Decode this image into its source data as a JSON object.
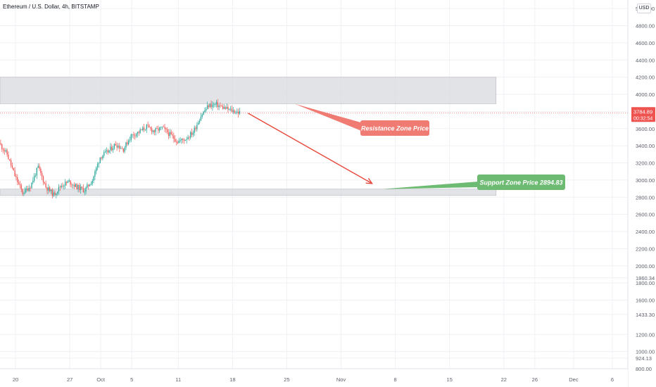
{
  "header": {
    "title": "Ethereum / U.S. Dollar, 4h, BITSTAMP",
    "currency": "USD"
  },
  "colors": {
    "up": "#26a69a",
    "down": "#ef5350",
    "zone_fill": "#d8d9de",
    "resistance_callout": "#f07b73",
    "support_callout": "#6dbb72",
    "arrow": "#e8483c",
    "price_badge": "#ef5350"
  },
  "chart_data": {
    "type": "candlestick",
    "ylim": [
      800,
      5100
    ],
    "yticks": [
      "5000.00",
      "4800.00",
      "4600.00",
      "4400.00",
      "4200.00",
      "4000.00",
      "3800.00",
      "3600.00",
      "3400.00",
      "3200.00",
      "3000.00",
      "2800.00",
      "2600.00",
      "2400.00",
      "2200.00",
      "2000.00",
      "1860.34",
      "1800.00",
      "1600.00",
      "1433.30",
      "1200.00",
      "1000.00",
      "924.13",
      "800.00"
    ],
    "xlim": [
      "2021-09-18",
      "2021-12-08"
    ],
    "xticks": [
      {
        "label": "20",
        "date": "2021-09-20"
      },
      {
        "label": "27",
        "date": "2021-09-27"
      },
      {
        "label": "Oct",
        "date": "2021-10-01"
      },
      {
        "label": "5",
        "date": "2021-10-05"
      },
      {
        "label": "11",
        "date": "2021-10-11"
      },
      {
        "label": "18",
        "date": "2021-10-18"
      },
      {
        "label": "25",
        "date": "2021-10-25"
      },
      {
        "label": "Nov",
        "date": "2021-11-01"
      },
      {
        "label": "8",
        "date": "2021-11-08"
      },
      {
        "label": "15",
        "date": "2021-11-15"
      },
      {
        "label": "22",
        "date": "2021-11-22"
      },
      {
        "label": "26",
        "date": "2021-11-26"
      },
      {
        "label": "Dec",
        "date": "2021-12-01"
      },
      {
        "label": "6",
        "date": "2021-12-06"
      }
    ],
    "price_path": [
      [
        "2021-09-18",
        3430
      ],
      [
        "2021-09-19",
        3300
      ],
      [
        "2021-09-20",
        3050
      ],
      [
        "2021-09-21",
        2850
      ],
      [
        "2021-09-22",
        2930
      ],
      [
        "2021-09-23",
        3150
      ],
      [
        "2021-09-24",
        2920
      ],
      [
        "2021-09-25",
        2830
      ],
      [
        "2021-09-26",
        2940
      ],
      [
        "2021-09-27",
        2980
      ],
      [
        "2021-09-28",
        2920
      ],
      [
        "2021-09-29",
        2880
      ],
      [
        "2021-09-30",
        3000
      ],
      [
        "2021-10-01",
        3270
      ],
      [
        "2021-10-02",
        3330
      ],
      [
        "2021-10-03",
        3420
      ],
      [
        "2021-10-04",
        3360
      ],
      [
        "2021-10-05",
        3520
      ],
      [
        "2021-10-06",
        3560
      ],
      [
        "2021-10-07",
        3620
      ],
      [
        "2021-10-08",
        3570
      ],
      [
        "2021-10-09",
        3610
      ],
      [
        "2021-10-10",
        3530
      ],
      [
        "2021-10-11",
        3450
      ],
      [
        "2021-10-12",
        3480
      ],
      [
        "2021-10-13",
        3560
      ],
      [
        "2021-10-14",
        3750
      ],
      [
        "2021-10-15",
        3870
      ],
      [
        "2021-10-16",
        3880
      ],
      [
        "2021-10-17",
        3840
      ],
      [
        "2021-10-18",
        3810
      ],
      [
        "2021-10-19",
        3785
      ]
    ],
    "last_price": "3784.89",
    "countdown": "00:32:54",
    "last_price_value": 3784.89,
    "zones": [
      {
        "name": "resistance",
        "from": "2021-09-18",
        "to": "2021-11-21",
        "low": 3890,
        "high": 4200
      },
      {
        "name": "support",
        "from": "2021-09-18",
        "to": "2021-11-21",
        "low": 2820,
        "high": 2894.83
      }
    ],
    "annotations": {
      "resistance_label": "Resistance Zone Price",
      "support_label": "Support Zone Price 2894.83"
    },
    "projection": {
      "from": [
        "2021-10-20",
        3780
      ],
      "to": [
        "2021-11-05",
        2960
      ]
    }
  }
}
